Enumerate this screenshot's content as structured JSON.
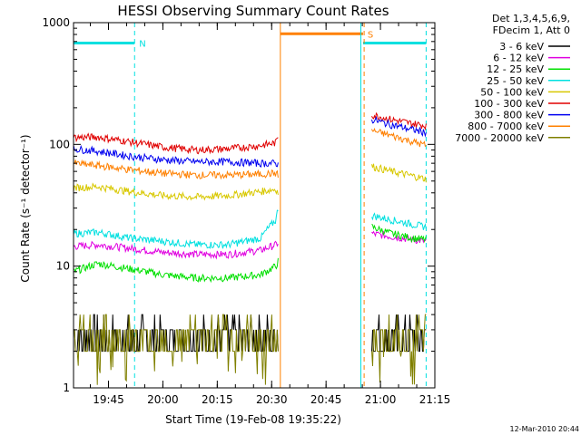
{
  "chart_data": {
    "type": "line",
    "title": "HESSI Observing Summary Count Rates",
    "xlabel": "Start Time (19-Feb-08 19:35:22)",
    "ylabel": "Count Rate (s⁻¹ detector⁻¹)",
    "yscale": "log",
    "ylim": [
      1,
      1000
    ],
    "xlim": [
      19.5894,
      21.25
    ],
    "x_ticks": [
      {
        "value": 19.75,
        "label": "19:45"
      },
      {
        "value": 20.0,
        "label": "20:00"
      },
      {
        "value": 20.25,
        "label": "20:15"
      },
      {
        "value": 20.5,
        "label": "20:30"
      },
      {
        "value": 20.75,
        "label": "20:45"
      },
      {
        "value": 21.0,
        "label": "21:00"
      },
      {
        "value": 21.25,
        "label": "21:15"
      }
    ],
    "y_ticks": [
      {
        "value": 1,
        "label": "1"
      },
      {
        "value": 10,
        "label": "10"
      },
      {
        "value": 100,
        "label": "100"
      },
      {
        "value": 1000,
        "label": "1000"
      }
    ],
    "legend": {
      "placement": "top-right",
      "header": [
        "Det 1,3,4,5,6,9,",
        "FDecim 1, Att 0"
      ],
      "colors": [
        "#000000",
        "#e000e0",
        "#00e000",
        "#00e0e0",
        "#d8c800",
        "#e00000",
        "#0000f0",
        "#ff8000",
        "#808000"
      ]
    },
    "series": [
      {
        "name": "3 - 6 keV",
        "color": "#000000",
        "segments": [
          {
            "x": [
              19.59,
              19.8,
              20.0,
              20.2,
              20.4,
              20.52,
              20.53
            ],
            "y": [
              3.0,
              3.0,
              3.0,
              3.0,
              3.0,
              3.0,
              3.0
            ]
          },
          {
            "x": [
              20.96,
              21.0,
              21.1,
              21.21
            ],
            "y": [
              3.0,
              3.0,
              3.0,
              3.0
            ]
          }
        ]
      },
      {
        "name": "6 - 12 keV",
        "color": "#e000e0",
        "segments": [
          {
            "x": [
              19.59,
              19.7,
              19.85,
              20.0,
              20.15,
              20.3,
              20.45,
              20.52,
              20.53
            ],
            "y": [
              14.5,
              15.0,
              14.0,
              13.0,
              12.5,
              12.5,
              13.5,
              15.0,
              15.5
            ]
          },
          {
            "x": [
              20.96,
              21.05,
              21.15,
              21.21
            ],
            "y": [
              18.5,
              17.5,
              16.5,
              16.0
            ]
          }
        ]
      },
      {
        "name": "12 - 25 keV",
        "color": "#00e000",
        "segments": [
          {
            "x": [
              19.59,
              19.7,
              19.85,
              20.0,
              20.15,
              20.3,
              20.45,
              20.52,
              20.53
            ],
            "y": [
              9.0,
              10.5,
              9.5,
              8.5,
              8.0,
              8.0,
              8.5,
              10.0,
              11.0
            ]
          },
          {
            "x": [
              20.96,
              21.05,
              21.15,
              21.21
            ],
            "y": [
              21.0,
              18.5,
              17.0,
              16.5
            ]
          }
        ]
      },
      {
        "name": "25 - 50 keV",
        "color": "#00e0e0",
        "segments": [
          {
            "x": [
              19.59,
              19.7,
              19.85,
              20.0,
              20.15,
              20.3,
              20.45,
              20.52,
              20.53
            ],
            "y": [
              18.5,
              19.0,
              17.0,
              16.0,
              15.0,
              15.0,
              17.0,
              24.0,
              30.0
            ]
          },
          {
            "x": [
              20.96,
              21.05,
              21.15,
              21.21
            ],
            "y": [
              26.0,
              24.0,
              22.0,
              21.0
            ]
          }
        ]
      },
      {
        "name": "50 - 100 keV",
        "color": "#d8c800",
        "segments": [
          {
            "x": [
              19.59,
              19.7,
              19.85,
              20.0,
              20.15,
              20.3,
              20.45,
              20.52,
              20.53
            ],
            "y": [
              44.0,
              45.0,
              41.0,
              38.0,
              37.0,
              38.0,
              41.0,
              43.0,
              40.0
            ]
          },
          {
            "x": [
              20.96,
              21.05,
              21.15,
              21.21
            ],
            "y": [
              66.0,
              60.0,
              55.0,
              52.0
            ]
          }
        ]
      },
      {
        "name": "100 - 300 keV",
        "color": "#e00000",
        "segments": [
          {
            "x": [
              19.59,
              19.7,
              19.85,
              20.0,
              20.15,
              20.3,
              20.45,
              20.52,
              20.53
            ],
            "y": [
              114.0,
              115.0,
              105.0,
              95.0,
              90.0,
              92.0,
              98.0,
              103.0,
              118.0
            ]
          },
          {
            "x": [
              20.96,
              21.05,
              21.15,
              21.21
            ],
            "y": [
              175.0,
              160.0,
              148.0,
              143.0
            ]
          }
        ]
      },
      {
        "name": "300 - 800 keV",
        "color": "#0000f0",
        "segments": [
          {
            "x": [
              19.59,
              19.7,
              19.85,
              20.0,
              20.15,
              20.3,
              20.45,
              20.52,
              20.53
            ],
            "y": [
              92.0,
              88.0,
              80.0,
              75.0,
              72.0,
              72.0,
              70.0,
              70.0,
              68.0
            ]
          },
          {
            "x": [
              20.96,
              21.05,
              21.15,
              21.21
            ],
            "y": [
              160.0,
              145.0,
              132.0,
              125.0
            ]
          }
        ]
      },
      {
        "name": "800 - 7000 keV",
        "color": "#ff8000",
        "segments": [
          {
            "x": [
              19.59,
              19.7,
              19.85,
              20.0,
              20.15,
              20.3,
              20.45,
              20.52,
              20.53
            ],
            "y": [
              70.0,
              67.0,
              62.0,
              58.0,
              56.0,
              56.0,
              57.0,
              58.0,
              56.0
            ]
          },
          {
            "x": [
              20.96,
              21.05,
              21.15,
              21.21
            ],
            "y": [
              130.0,
              118.0,
              105.0,
              98.0
            ]
          }
        ]
      },
      {
        "name": "7000 - 20000 keV",
        "color": "#808000",
        "segments": [
          {
            "x": [
              19.59,
              19.8,
              20.0,
              20.2,
              20.4,
              20.52,
              20.53
            ],
            "y": [
              2.5,
              2.5,
              2.4,
              2.4,
              2.5,
              2.5,
              2.6
            ]
          },
          {
            "x": [
              20.96,
              21.0,
              21.1,
              21.21
            ],
            "y": [
              2.6,
              2.5,
              2.5,
              2.5
            ]
          }
        ]
      }
    ],
    "annotations": [
      {
        "type": "bar",
        "label": "N",
        "color": "#00e0e0",
        "x_start": 19.5894,
        "x_end": 19.87,
        "y": 680
      },
      {
        "type": "bar",
        "label": "",
        "color": "#00e0e0",
        "x_start": 20.92,
        "x_end": 21.21,
        "y": 680
      },
      {
        "type": "bar",
        "label": "S",
        "color": "#ff8000",
        "x_start": 20.54,
        "x_end": 20.92,
        "y": 810
      },
      {
        "type": "vline",
        "color": "#00e0e0",
        "x": 19.87,
        "dashed": true
      },
      {
        "type": "vline",
        "color": "#ff8000",
        "x": 20.54,
        "dashed": false
      },
      {
        "type": "vline",
        "color": "#00e0e0",
        "x": 20.91,
        "dashed": false
      },
      {
        "type": "vline",
        "color": "#ff8000",
        "x": 20.925,
        "dashed": true
      },
      {
        "type": "vline",
        "color": "#00e0e0",
        "x": 21.21,
        "dashed": true
      }
    ],
    "footnote": "12-Mar-2010 20:44"
  }
}
